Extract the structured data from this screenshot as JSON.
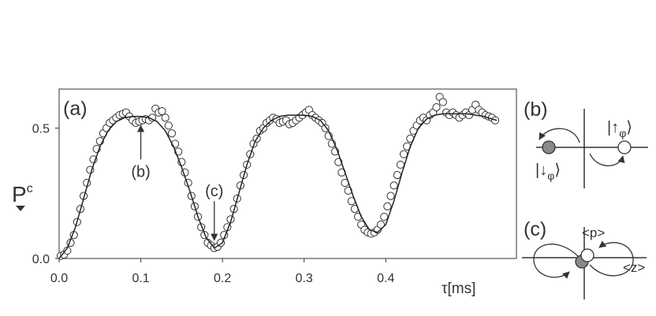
{
  "chart_data": {
    "type": "scatter",
    "panel_label": "(a)",
    "ylabel": "P",
    "ylabel_superscript": "c",
    "xlabel": "τ[ms]",
    "xlim": [
      0.0,
      0.56
    ],
    "ylim": [
      0.0,
      0.65
    ],
    "x_ticks": [
      {
        "value": 0.0,
        "label": "0.0"
      },
      {
        "value": 0.1,
        "label": "0.1"
      },
      {
        "value": 0.2,
        "label": "0.2"
      },
      {
        "value": 0.3,
        "label": "0.3"
      },
      {
        "value": 0.4,
        "label": "0.4"
      }
    ],
    "y_ticks": [
      {
        "value": 0.0,
        "label": "0.0"
      },
      {
        "value": 0.5,
        "label": "0.5"
      }
    ],
    "grid": false,
    "series": [
      {
        "kind": "points",
        "points": [
          [
            0.002,
            0.01
          ],
          [
            0.006,
            0.015
          ],
          [
            0.01,
            0.03
          ],
          [
            0.014,
            0.06
          ],
          [
            0.018,
            0.09
          ],
          [
            0.022,
            0.14
          ],
          [
            0.026,
            0.19
          ],
          [
            0.03,
            0.24
          ],
          [
            0.034,
            0.29
          ],
          [
            0.038,
            0.34
          ],
          [
            0.042,
            0.38
          ],
          [
            0.046,
            0.42
          ],
          [
            0.05,
            0.45
          ],
          [
            0.054,
            0.48
          ],
          [
            0.058,
            0.5
          ],
          [
            0.062,
            0.52
          ],
          [
            0.066,
            0.53
          ],
          [
            0.07,
            0.54
          ],
          [
            0.074,
            0.55
          ],
          [
            0.078,
            0.555
          ],
          [
            0.082,
            0.56
          ],
          [
            0.086,
            0.545
          ],
          [
            0.09,
            0.53
          ],
          [
            0.094,
            0.52
          ],
          [
            0.098,
            0.525
          ],
          [
            0.102,
            0.53
          ],
          [
            0.106,
            0.535
          ],
          [
            0.11,
            0.53
          ],
          [
            0.114,
            0.54
          ],
          [
            0.118,
            0.575
          ],
          [
            0.122,
            0.56
          ],
          [
            0.126,
            0.565
          ],
          [
            0.13,
            0.54
          ],
          [
            0.134,
            0.51
          ],
          [
            0.138,
            0.48
          ],
          [
            0.142,
            0.44
          ],
          [
            0.146,
            0.41
          ],
          [
            0.15,
            0.37
          ],
          [
            0.154,
            0.33
          ],
          [
            0.158,
            0.29
          ],
          [
            0.162,
            0.24
          ],
          [
            0.166,
            0.2
          ],
          [
            0.17,
            0.16
          ],
          [
            0.174,
            0.12
          ],
          [
            0.178,
            0.09
          ],
          [
            0.182,
            0.06
          ],
          [
            0.186,
            0.05
          ],
          [
            0.19,
            0.04
          ],
          [
            0.194,
            0.045
          ],
          [
            0.198,
            0.06
          ],
          [
            0.202,
            0.09
          ],
          [
            0.206,
            0.12
          ],
          [
            0.21,
            0.15
          ],
          [
            0.214,
            0.19
          ],
          [
            0.218,
            0.23
          ],
          [
            0.222,
            0.28
          ],
          [
            0.226,
            0.32
          ],
          [
            0.23,
            0.36
          ],
          [
            0.234,
            0.4
          ],
          [
            0.238,
            0.44
          ],
          [
            0.242,
            0.46
          ],
          [
            0.246,
            0.49
          ],
          [
            0.25,
            0.5
          ],
          [
            0.254,
            0.52
          ],
          [
            0.258,
            0.53
          ],
          [
            0.262,
            0.54
          ],
          [
            0.266,
            0.535
          ],
          [
            0.27,
            0.52
          ],
          [
            0.274,
            0.525
          ],
          [
            0.278,
            0.53
          ],
          [
            0.282,
            0.515
          ],
          [
            0.286,
            0.52
          ],
          [
            0.29,
            0.53
          ],
          [
            0.294,
            0.54
          ],
          [
            0.298,
            0.55
          ],
          [
            0.302,
            0.56
          ],
          [
            0.306,
            0.57
          ],
          [
            0.31,
            0.55
          ],
          [
            0.314,
            0.54
          ],
          [
            0.318,
            0.53
          ],
          [
            0.322,
            0.52
          ],
          [
            0.326,
            0.5
          ],
          [
            0.33,
            0.47
          ],
          [
            0.334,
            0.44
          ],
          [
            0.338,
            0.41
          ],
          [
            0.342,
            0.37
          ],
          [
            0.346,
            0.33
          ],
          [
            0.35,
            0.29
          ],
          [
            0.354,
            0.26
          ],
          [
            0.358,
            0.22
          ],
          [
            0.362,
            0.19
          ],
          [
            0.366,
            0.16
          ],
          [
            0.37,
            0.13
          ],
          [
            0.374,
            0.11
          ],
          [
            0.378,
            0.1
          ],
          [
            0.382,
            0.095
          ],
          [
            0.386,
            0.1
          ],
          [
            0.39,
            0.11
          ],
          [
            0.394,
            0.13
          ],
          [
            0.398,
            0.16
          ],
          [
            0.402,
            0.2
          ],
          [
            0.406,
            0.24
          ],
          [
            0.41,
            0.28
          ],
          [
            0.414,
            0.32
          ],
          [
            0.418,
            0.36
          ],
          [
            0.422,
            0.4
          ],
          [
            0.426,
            0.43
          ],
          [
            0.43,
            0.46
          ],
          [
            0.434,
            0.49
          ],
          [
            0.438,
            0.51
          ],
          [
            0.442,
            0.53
          ],
          [
            0.446,
            0.54
          ],
          [
            0.45,
            0.53
          ],
          [
            0.454,
            0.55
          ],
          [
            0.458,
            0.56
          ],
          [
            0.462,
            0.58
          ],
          [
            0.466,
            0.62
          ],
          [
            0.47,
            0.6
          ],
          [
            0.474,
            0.56
          ],
          [
            0.478,
            0.55
          ],
          [
            0.482,
            0.56
          ],
          [
            0.486,
            0.55
          ],
          [
            0.49,
            0.54
          ],
          [
            0.494,
            0.55
          ],
          [
            0.498,
            0.56
          ],
          [
            0.502,
            0.55
          ],
          [
            0.506,
            0.57
          ],
          [
            0.51,
            0.59
          ],
          [
            0.514,
            0.57
          ],
          [
            0.518,
            0.56
          ],
          [
            0.522,
            0.55
          ],
          [
            0.526,
            0.545
          ],
          [
            0.53,
            0.54
          ],
          [
            0.534,
            0.53
          ]
        ]
      },
      {
        "kind": "fit-curve",
        "points": [
          [
            0.0,
            0.0
          ],
          [
            0.01,
            0.04
          ],
          [
            0.02,
            0.12
          ],
          [
            0.03,
            0.23
          ],
          [
            0.04,
            0.34
          ],
          [
            0.05,
            0.43
          ],
          [
            0.06,
            0.49
          ],
          [
            0.07,
            0.525
          ],
          [
            0.08,
            0.54
          ],
          [
            0.09,
            0.545
          ],
          [
            0.1,
            0.545
          ],
          [
            0.11,
            0.54
          ],
          [
            0.12,
            0.525
          ],
          [
            0.13,
            0.49
          ],
          [
            0.14,
            0.43
          ],
          [
            0.15,
            0.35
          ],
          [
            0.16,
            0.26
          ],
          [
            0.17,
            0.16
          ],
          [
            0.18,
            0.08
          ],
          [
            0.19,
            0.04
          ],
          [
            0.2,
            0.06
          ],
          [
            0.21,
            0.14
          ],
          [
            0.22,
            0.25
          ],
          [
            0.23,
            0.36
          ],
          [
            0.24,
            0.45
          ],
          [
            0.25,
            0.5
          ],
          [
            0.26,
            0.53
          ],
          [
            0.27,
            0.545
          ],
          [
            0.28,
            0.55
          ],
          [
            0.29,
            0.55
          ],
          [
            0.3,
            0.55
          ],
          [
            0.31,
            0.545
          ],
          [
            0.32,
            0.53
          ],
          [
            0.33,
            0.49
          ],
          [
            0.34,
            0.42
          ],
          [
            0.35,
            0.33
          ],
          [
            0.36,
            0.24
          ],
          [
            0.37,
            0.16
          ],
          [
            0.38,
            0.11
          ],
          [
            0.39,
            0.1
          ],
          [
            0.4,
            0.13
          ],
          [
            0.41,
            0.22
          ],
          [
            0.42,
            0.33
          ],
          [
            0.43,
            0.43
          ],
          [
            0.44,
            0.5
          ],
          [
            0.45,
            0.535
          ],
          [
            0.46,
            0.55
          ],
          [
            0.47,
            0.555
          ],
          [
            0.48,
            0.555
          ],
          [
            0.49,
            0.555
          ],
          [
            0.5,
            0.555
          ],
          [
            0.51,
            0.55
          ],
          [
            0.52,
            0.545
          ],
          [
            0.53,
            0.535
          ],
          [
            0.536,
            0.53
          ]
        ]
      }
    ],
    "annotations": [
      {
        "label": "(b)",
        "arrow_from": [
          0.1,
          0.38
        ],
        "arrow_to": [
          0.1,
          0.51
        ]
      },
      {
        "label": "(c)",
        "arrow_from": [
          0.19,
          0.22
        ],
        "arrow_to": [
          0.19,
          0.07
        ]
      }
    ]
  },
  "inset_b": {
    "panel_label": "(b)",
    "ket_up": "|↑φ⟩",
    "ket_down": "|↓φ⟩",
    "up_symbol": "|↑",
    "down_symbol": "|↓",
    "phi": "φ",
    "ket_close": "⟩",
    "filled_color": "#8a8a8a",
    "open_color": "#ffffff"
  },
  "inset_c": {
    "panel_label": "(c)",
    "p_axis_label": "<p>",
    "z_axis_label": "<z>",
    "filled_color": "#8a8a8a",
    "open_color": "#ffffff"
  }
}
